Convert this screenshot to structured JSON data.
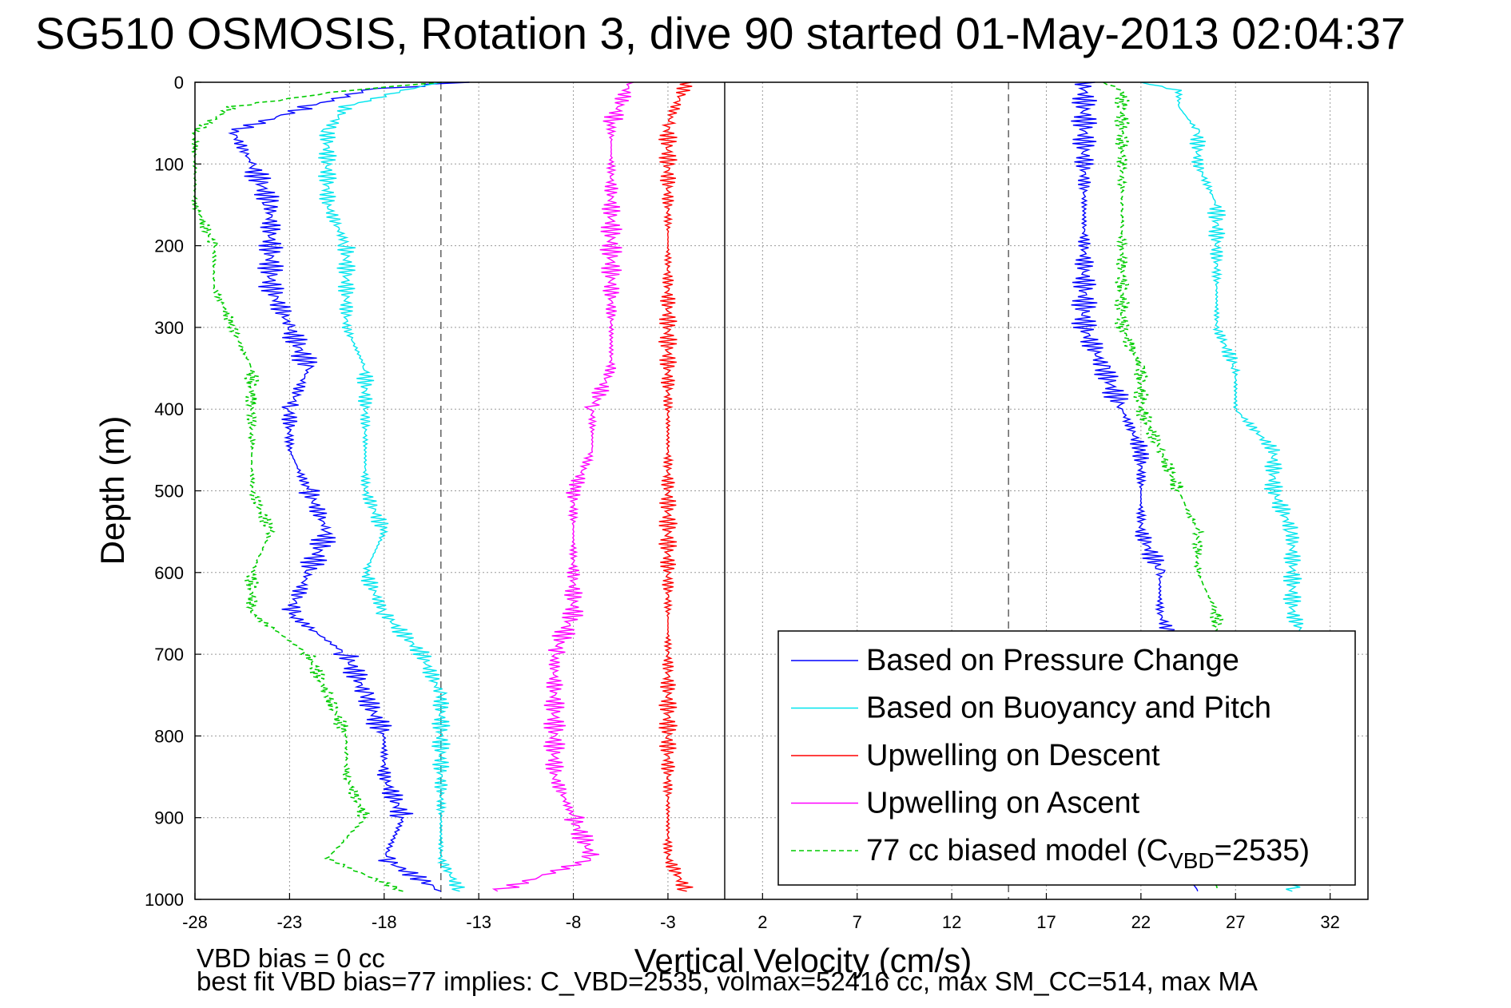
{
  "title": "SG510 OSMOSIS, Rotation 3, dive 90 started 01-May-2013 02:04:37",
  "footer": {
    "line1": "VBD bias = 0 cc",
    "line2": "best fit VBD bias=77 implies: C_VBD=2535, volmax=52416 cc, max SM_CC=514, max MA"
  },
  "chart_data": {
    "type": "line",
    "xlabel": "Vertical Velocity (cm/s)",
    "ylabel": "Depth (m)",
    "xlim": [
      -28,
      34
    ],
    "ylim": [
      1000,
      0
    ],
    "xticks": [
      -28,
      -23,
      -18,
      -13,
      -8,
      -3,
      2,
      7,
      12,
      17,
      22,
      27,
      32
    ],
    "yticks": [
      0,
      100,
      200,
      300,
      400,
      500,
      600,
      700,
      800,
      900,
      1000
    ],
    "grid": true,
    "legend_position": "bottom-right",
    "reference_lines": [
      {
        "x": -15,
        "style": "dashed"
      },
      {
        "x": 0,
        "style": "solid"
      },
      {
        "x": 15,
        "style": "dashed"
      }
    ],
    "series": [
      {
        "name": "Based on Pressure Change",
        "color": "#0000ff",
        "style": "solid",
        "depth": [
          0,
          10,
          30,
          60,
          100,
          150,
          200,
          250,
          300,
          350,
          400,
          450,
          500,
          550,
          600,
          650,
          700,
          750,
          800,
          850,
          900,
          950,
          990
        ],
        "descent": [
          -14,
          -19,
          -22,
          -26,
          -25,
          -24,
          -24,
          -24,
          -23,
          -22,
          -23,
          -23,
          -22,
          -21,
          -22,
          -23,
          -20,
          -19,
          -18,
          -18,
          -17,
          -18,
          -15
        ],
        "ascent": [
          19,
          19,
          19,
          19,
          19,
          19,
          19,
          19,
          19,
          20,
          21,
          22,
          22,
          22,
          23,
          23,
          24,
          24,
          24,
          24,
          24,
          24,
          25
        ]
      },
      {
        "name": "Based on Buoyancy and Pitch",
        "color": "#00e5ee",
        "style": "solid",
        "depth": [
          0,
          10,
          30,
          60,
          100,
          150,
          200,
          250,
          300,
          350,
          400,
          450,
          500,
          550,
          600,
          650,
          700,
          750,
          800,
          850,
          900,
          950,
          990
        ],
        "descent": [
          -15,
          -17,
          -20,
          -21,
          -21,
          -21,
          -20,
          -20,
          -20,
          -19,
          -19,
          -19,
          -19,
          -18,
          -19,
          -18,
          -16,
          -15,
          -15,
          -15,
          -15,
          -15,
          -14
        ],
        "ascent": [
          22,
          24,
          24,
          25,
          25,
          26,
          26,
          26,
          26,
          27,
          27,
          29,
          29,
          30,
          30,
          30,
          31,
          31,
          31,
          31,
          31,
          31,
          30
        ]
      },
      {
        "name": "Upwelling on Descent",
        "color": "#ff0000",
        "style": "solid",
        "depth": [
          0,
          50,
          100,
          150,
          200,
          250,
          300,
          350,
          400,
          450,
          500,
          550,
          600,
          650,
          700,
          750,
          800,
          850,
          900,
          950,
          990
        ],
        "values": [
          -2,
          -3,
          -3,
          -3,
          -3,
          -3,
          -3,
          -3,
          -3,
          -3,
          -3,
          -3,
          -3,
          -3,
          -3,
          -3,
          -3,
          -3,
          -3,
          -3,
          -2
        ]
      },
      {
        "name": "Upwelling on Ascent",
        "color": "#ff00ff",
        "style": "solid",
        "depth": [
          0,
          50,
          100,
          150,
          200,
          250,
          300,
          350,
          400,
          450,
          500,
          550,
          600,
          650,
          700,
          750,
          800,
          850,
          900,
          950,
          990
        ],
        "values": [
          -5,
          -6,
          -6,
          -6,
          -6,
          -6,
          -6,
          -6,
          -7,
          -7,
          -8,
          -8,
          -8,
          -8,
          -9,
          -9,
          -9,
          -9,
          -8,
          -7,
          -12
        ]
      },
      {
        "name": "77 cc biased model (CVBD=2535)",
        "name_parts": [
          "77 cc biased model (C",
          "VBD",
          "=2535)"
        ],
        "color": "#00cc00",
        "style": "dashed",
        "depth": [
          0,
          10,
          30,
          60,
          100,
          150,
          200,
          250,
          300,
          350,
          400,
          450,
          500,
          550,
          600,
          650,
          700,
          750,
          800,
          850,
          900,
          950,
          990
        ],
        "descent": [
          -15,
          -20,
          -26,
          -28,
          -28,
          -28,
          -27,
          -27,
          -26,
          -25,
          -25,
          -25,
          -25,
          -24,
          -25,
          -25,
          -22,
          -21,
          -20,
          -20,
          -19,
          -21,
          -17
        ],
        "ascent": [
          20,
          21,
          21,
          21,
          21,
          21,
          21,
          21,
          21,
          22,
          22,
          23,
          24,
          25,
          25,
          26,
          26,
          26,
          26,
          26,
          26,
          26,
          26
        ]
      }
    ]
  }
}
